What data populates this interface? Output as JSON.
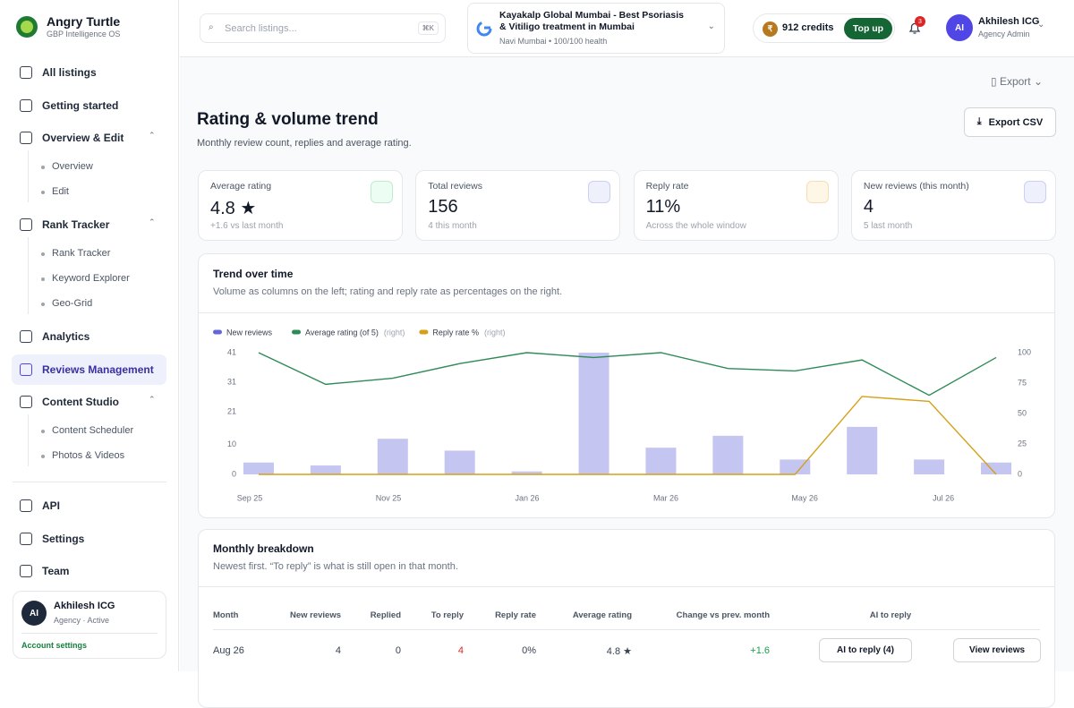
{
  "brand": {
    "name": "Angry Turtle",
    "tagline": "GBP Intelligence OS"
  },
  "nav": [
    {
      "label": "All listings"
    },
    {
      "label": "Getting started"
    },
    {
      "label": "Overview & Edit",
      "children": [
        "Overview",
        "Edit"
      ]
    },
    {
      "label": "Rank Tracker",
      "children": [
        "Rank Tracker",
        "Keyword Explorer",
        "Geo-Grid"
      ]
    },
    {
      "label": "Analytics"
    },
    {
      "label": "Reviews Management",
      "active": true
    },
    {
      "label": "Content Studio",
      "children": [
        "Content Scheduler",
        "Photos & Videos"
      ]
    },
    {
      "label": "API"
    },
    {
      "label": "Settings"
    },
    {
      "label": "Team"
    }
  ],
  "account": {
    "initials": "AI",
    "name": "Akhilesh ICG",
    "status": "Agency · Active",
    "link": "Account settings"
  },
  "topbar": {
    "search": "Search listings...",
    "shortcut": "⌘K",
    "listing": {
      "name": "Kayakalp Global Mumbai - Best Psoriasis & Vitiligo treatment in Mumbai",
      "meta": "Navi Mumbai • 100/100 health"
    },
    "credits": "912 credits",
    "credit_icon": "₹",
    "topup": "Top up",
    "notifications": "3",
    "user": {
      "initials": "AI",
      "name": "Akhilesh ICG",
      "role": "Agency Admin"
    }
  },
  "export": "Export",
  "header": {
    "title": "Rating & volume trend",
    "subtitle": "Monthly review count, replies and average rating.",
    "button": "Export CSV"
  },
  "stats": [
    {
      "label": "Average rating",
      "value": "4.8 ★",
      "note": "+1.6 vs last month"
    },
    {
      "label": "Total reviews",
      "value": "156",
      "note": "4 this month"
    },
    {
      "label": "Reply rate",
      "value": "11%",
      "note": "Across the whole window"
    },
    {
      "label": "New reviews (this month)",
      "value": "4",
      "note": "5 last month"
    }
  ],
  "trend_card": {
    "title": "Trend over time",
    "subtitle": "Volume as columns on the left; rating and reply rate as percentages on the right."
  },
  "chart_data": {
    "type": "bar",
    "categories": [
      "Sep 25",
      null,
      "Nov 25",
      null,
      "Jan 26",
      null,
      "Mar 26",
      null,
      "May 26",
      null,
      "Jul 26",
      null
    ],
    "series": [
      {
        "name": "New reviews",
        "type": "bar",
        "color": "#6366d8",
        "values": [
          4,
          3,
          12,
          8,
          1,
          41,
          9,
          13,
          5,
          16,
          5,
          4
        ]
      },
      {
        "name": "Average rating (of 5)",
        "type": "line",
        "axis": "y2",
        "axis_note": "(right)",
        "color": "#2e8b57",
        "values": [
          100,
          74,
          79,
          91,
          100,
          96,
          100,
          87,
          85,
          94,
          65,
          96
        ]
      },
      {
        "name": "Reply rate %",
        "type": "line",
        "axis": "y2",
        "axis_note": "(right)",
        "color": "#d4a017",
        "values": [
          0,
          0,
          0,
          0,
          0,
          0,
          0,
          0,
          0,
          64,
          60,
          0
        ]
      }
    ],
    "ylim": [
      0,
      41
    ],
    "yticks": [
      0,
      10,
      21,
      31,
      41
    ],
    "y2lim": [
      0,
      100
    ],
    "y2ticks": [
      0,
      25,
      50,
      75,
      100
    ],
    "grid": false
  },
  "breakdown": {
    "title": "Monthly breakdown",
    "subtitle": "Newest first. “To reply” is what is still open in that month.",
    "columns": [
      "Month",
      "New reviews",
      "Replied",
      "To reply",
      "Reply rate",
      "Average rating",
      "Change vs prev. month",
      "AI to reply"
    ],
    "rows": [
      [
        "Aug 26",
        4,
        0,
        4,
        "0%",
        "4.8 ★",
        "+1.6",
        "AI to reply (4)",
        "View reviews"
      ]
    ]
  }
}
